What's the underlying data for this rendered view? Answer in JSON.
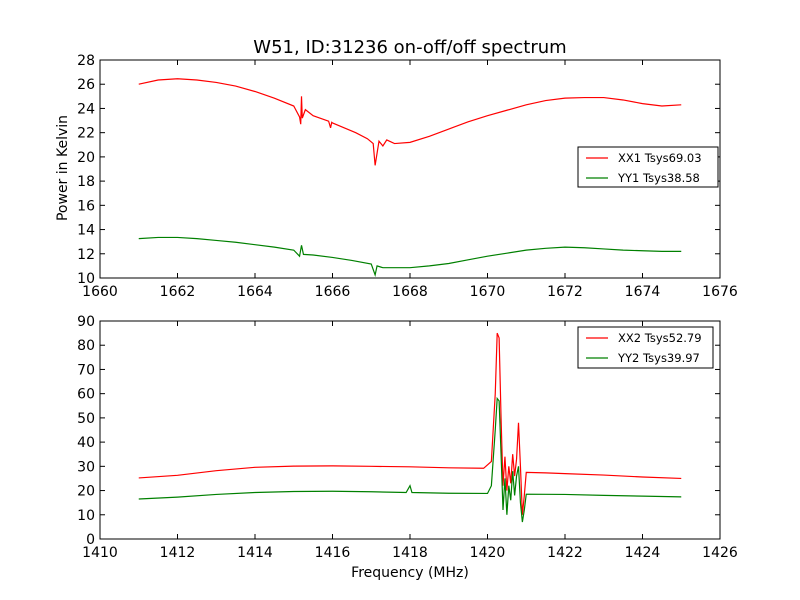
{
  "figure": {
    "title": "W51, ID:31236 on-off/off spectrum",
    "ylabel": "Power in Kelvin",
    "xlabel": "Frequency (MHz)"
  },
  "chart_data": [
    {
      "type": "line",
      "title": "W51, ID:31236 on-off/off spectrum",
      "ylabel": "Power in Kelvin",
      "xlabel": "",
      "xlim": [
        1660,
        1676
      ],
      "ylim": [
        10,
        28
      ],
      "xticks": [
        1660,
        1662,
        1664,
        1666,
        1668,
        1670,
        1672,
        1674,
        1676
      ],
      "yticks": [
        10,
        12,
        14,
        16,
        18,
        20,
        22,
        24,
        26,
        28
      ],
      "grid": false,
      "legend": "center-right",
      "series": [
        {
          "name": "XX1 Tsys69.03",
          "color": "#ff0000",
          "points": [
            [
              1661.0,
              26.0
            ],
            [
              1661.5,
              26.35
            ],
            [
              1662.0,
              26.45
            ],
            [
              1662.5,
              26.35
            ],
            [
              1663.0,
              26.15
            ],
            [
              1663.5,
              25.85
            ],
            [
              1664.0,
              25.4
            ],
            [
              1664.5,
              24.85
            ],
            [
              1665.0,
              24.2
            ],
            [
              1665.15,
              23.3
            ],
            [
              1665.18,
              22.7
            ],
            [
              1665.2,
              25.0
            ],
            [
              1665.22,
              23.2
            ],
            [
              1665.3,
              23.9
            ],
            [
              1665.5,
              23.4
            ],
            [
              1665.9,
              22.95
            ],
            [
              1665.95,
              22.4
            ],
            [
              1665.98,
              22.85
            ],
            [
              1666.0,
              22.8
            ],
            [
              1666.3,
              22.4
            ],
            [
              1666.6,
              22.0
            ],
            [
              1666.9,
              21.5
            ],
            [
              1667.05,
              21.1
            ],
            [
              1667.1,
              19.3
            ],
            [
              1667.15,
              20.3
            ],
            [
              1667.2,
              21.3
            ],
            [
              1667.3,
              20.9
            ],
            [
              1667.4,
              21.4
            ],
            [
              1667.6,
              21.1
            ],
            [
              1668.0,
              21.2
            ],
            [
              1668.5,
              21.7
            ],
            [
              1669.0,
              22.3
            ],
            [
              1669.5,
              22.9
            ],
            [
              1670.0,
              23.4
            ],
            [
              1670.5,
              23.85
            ],
            [
              1671.0,
              24.3
            ],
            [
              1671.5,
              24.65
            ],
            [
              1672.0,
              24.85
            ],
            [
              1672.5,
              24.9
            ],
            [
              1673.0,
              24.9
            ],
            [
              1673.5,
              24.7
            ],
            [
              1674.0,
              24.4
            ],
            [
              1674.5,
              24.2
            ],
            [
              1675.0,
              24.3
            ]
          ]
        },
        {
          "name": "YY1 Tsys38.58",
          "color": "#008000",
          "points": [
            [
              1661.0,
              13.25
            ],
            [
              1661.5,
              13.35
            ],
            [
              1662.0,
              13.35
            ],
            [
              1662.5,
              13.25
            ],
            [
              1663.0,
              13.1
            ],
            [
              1663.5,
              12.95
            ],
            [
              1664.0,
              12.75
            ],
            [
              1664.5,
              12.55
            ],
            [
              1665.0,
              12.3
            ],
            [
              1665.15,
              11.8
            ],
            [
              1665.2,
              12.7
            ],
            [
              1665.25,
              11.95
            ],
            [
              1665.5,
              11.9
            ],
            [
              1666.0,
              11.7
            ],
            [
              1666.5,
              11.45
            ],
            [
              1667.0,
              11.15
            ],
            [
              1667.1,
              10.25
            ],
            [
              1667.15,
              11.0
            ],
            [
              1667.3,
              10.85
            ],
            [
              1667.6,
              10.85
            ],
            [
              1668.0,
              10.85
            ],
            [
              1668.5,
              11.0
            ],
            [
              1669.0,
              11.2
            ],
            [
              1669.5,
              11.5
            ],
            [
              1670.0,
              11.8
            ],
            [
              1670.5,
              12.05
            ],
            [
              1671.0,
              12.3
            ],
            [
              1671.5,
              12.45
            ],
            [
              1672.0,
              12.55
            ],
            [
              1672.5,
              12.5
            ],
            [
              1673.0,
              12.4
            ],
            [
              1673.5,
              12.3
            ],
            [
              1674.0,
              12.25
            ],
            [
              1674.5,
              12.2
            ],
            [
              1675.0,
              12.2
            ]
          ]
        }
      ]
    },
    {
      "type": "line",
      "title": "",
      "ylabel": "",
      "xlabel": "Frequency (MHz)",
      "xlim": [
        1410,
        1426
      ],
      "ylim": [
        0,
        90
      ],
      "xticks": [
        1410,
        1412,
        1414,
        1416,
        1418,
        1420,
        1422,
        1424,
        1426
      ],
      "yticks": [
        0,
        10,
        20,
        30,
        40,
        50,
        60,
        70,
        80,
        90
      ],
      "grid": false,
      "legend": "top-right",
      "series": [
        {
          "name": "XX2 Tsys52.79",
          "color": "#ff0000",
          "points": [
            [
              1411.0,
              25.2
            ],
            [
              1412.0,
              26.3
            ],
            [
              1413.0,
              28.2
            ],
            [
              1414.0,
              29.6
            ],
            [
              1415.0,
              30.1
            ],
            [
              1416.0,
              30.2
            ],
            [
              1417.0,
              30.0
            ],
            [
              1418.0,
              29.8
            ],
            [
              1419.0,
              29.4
            ],
            [
              1419.9,
              29.2
            ],
            [
              1420.1,
              32.0
            ],
            [
              1420.2,
              60.0
            ],
            [
              1420.25,
              85.0
            ],
            [
              1420.3,
              83.0
            ],
            [
              1420.35,
              50.0
            ],
            [
              1420.4,
              22.0
            ],
            [
              1420.45,
              34.0
            ],
            [
              1420.5,
              20.0
            ],
            [
              1420.55,
              30.0
            ],
            [
              1420.6,
              23.0
            ],
            [
              1420.65,
              35.0
            ],
            [
              1420.7,
              26.0
            ],
            [
              1420.75,
              33.0
            ],
            [
              1420.8,
              48.0
            ],
            [
              1420.85,
              30.0
            ],
            [
              1420.9,
              10.0
            ],
            [
              1420.95,
              18.0
            ],
            [
              1421.0,
              27.5
            ],
            [
              1421.5,
              27.3
            ],
            [
              1422.0,
              27.0
            ],
            [
              1423.0,
              26.4
            ],
            [
              1424.0,
              25.6
            ],
            [
              1425.0,
              25.0
            ]
          ]
        },
        {
          "name": "YY2 Tsys39.97",
          "color": "#008000",
          "points": [
            [
              1411.0,
              16.5
            ],
            [
              1412.0,
              17.3
            ],
            [
              1413.0,
              18.4
            ],
            [
              1414.0,
              19.2
            ],
            [
              1415.0,
              19.6
            ],
            [
              1416.0,
              19.7
            ],
            [
              1417.0,
              19.5
            ],
            [
              1417.9,
              19.2
            ],
            [
              1418.0,
              22.0
            ],
            [
              1418.05,
              19.2
            ],
            [
              1419.0,
              18.9
            ],
            [
              1420.0,
              18.8
            ],
            [
              1420.1,
              22.0
            ],
            [
              1420.2,
              45.0
            ],
            [
              1420.25,
              58.0
            ],
            [
              1420.3,
              57.0
            ],
            [
              1420.35,
              35.0
            ],
            [
              1420.4,
              12.0
            ],
            [
              1420.45,
              25.0
            ],
            [
              1420.5,
              10.0
            ],
            [
              1420.55,
              22.0
            ],
            [
              1420.6,
              16.0
            ],
            [
              1420.65,
              28.0
            ],
            [
              1420.7,
              18.0
            ],
            [
              1420.75,
              26.0
            ],
            [
              1420.8,
              30.0
            ],
            [
              1420.85,
              15.0
            ],
            [
              1420.9,
              7.0
            ],
            [
              1420.95,
              12.0
            ],
            [
              1421.0,
              18.5
            ],
            [
              1422.0,
              18.4
            ],
            [
              1423.0,
              18.0
            ],
            [
              1424.0,
              17.7
            ],
            [
              1425.0,
              17.4
            ]
          ]
        }
      ]
    }
  ]
}
